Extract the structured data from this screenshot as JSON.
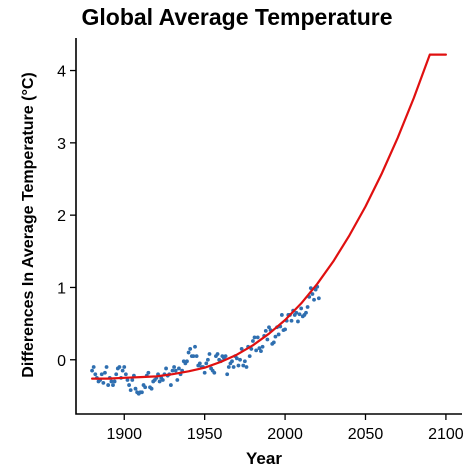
{
  "chart_data": {
    "type": "scatter",
    "title": "Global Average Temperature",
    "xlabel": "Year",
    "ylabel": "Differences In Average Temperature (°C)",
    "xlim": [
      1870,
      2110
    ],
    "ylim": [
      -0.75,
      4.45
    ],
    "xticks": [
      1900,
      1950,
      2000,
      2050,
      2100
    ],
    "yticks": [
      0,
      1,
      2,
      3,
      4
    ],
    "grid": false,
    "legend": "none",
    "colors": {
      "points": "#2f6fb0",
      "fit": "#e01010",
      "axis": "#000000"
    },
    "series": [
      {
        "type": "scatter",
        "x": [
          1880,
          1881,
          1882,
          1883,
          1884,
          1885,
          1886,
          1887,
          1888,
          1889,
          1890,
          1891,
          1892,
          1893,
          1894,
          1895,
          1896,
          1897,
          1898,
          1899,
          1900,
          1901,
          1902,
          1903,
          1904,
          1905,
          1906,
          1907,
          1908,
          1909,
          1910,
          1911,
          1912,
          1913,
          1914,
          1915,
          1916,
          1917,
          1918,
          1919,
          1920,
          1921,
          1922,
          1923,
          1924,
          1925,
          1926,
          1927,
          1928,
          1929,
          1930,
          1931,
          1932,
          1933,
          1934,
          1935,
          1936,
          1937,
          1938,
          1939,
          1940,
          1941,
          1942,
          1943,
          1944,
          1945,
          1946,
          1947,
          1948,
          1949,
          1950,
          1951,
          1952,
          1953,
          1954,
          1955,
          1956,
          1957,
          1958,
          1959,
          1960,
          1961,
          1962,
          1963,
          1964,
          1965,
          1966,
          1967,
          1968,
          1969,
          1970,
          1971,
          1972,
          1973,
          1974,
          1975,
          1976,
          1977,
          1978,
          1979,
          1980,
          1981,
          1982,
          1983,
          1984,
          1985,
          1986,
          1987,
          1988,
          1989,
          1990,
          1991,
          1992,
          1993,
          1994,
          1995,
          1996,
          1997,
          1998,
          1999,
          2000,
          2001,
          2002,
          2003,
          2004,
          2005,
          2006,
          2007,
          2008,
          2009,
          2010,
          2011,
          2012,
          2013,
          2014,
          2015,
          2016,
          2017,
          2018,
          2019,
          2020,
          2021
        ],
        "y": [
          -0.15,
          -0.1,
          -0.2,
          -0.25,
          -0.3,
          -0.28,
          -0.2,
          -0.32,
          -0.18,
          -0.1,
          -0.35,
          -0.25,
          -0.3,
          -0.35,
          -0.3,
          -0.2,
          -0.12,
          -0.1,
          -0.25,
          -0.15,
          -0.1,
          -0.2,
          -0.28,
          -0.35,
          -0.42,
          -0.28,
          -0.22,
          -0.4,
          -0.45,
          -0.47,
          -0.45,
          -0.45,
          -0.35,
          -0.38,
          -0.22,
          -0.18,
          -0.38,
          -0.4,
          -0.3,
          -0.28,
          -0.25,
          -0.2,
          -0.3,
          -0.25,
          -0.28,
          -0.2,
          -0.12,
          -0.22,
          -0.2,
          -0.35,
          -0.15,
          -0.1,
          -0.15,
          -0.28,
          -0.12,
          -0.2,
          -0.15,
          -0.02,
          -0.05,
          -0.02,
          0.1,
          0.15,
          0.05,
          0.05,
          0.18,
          0.05,
          -0.08,
          -0.05,
          -0.1,
          -0.1,
          -0.18,
          -0.05,
          0.0,
          0.08,
          -0.12,
          -0.15,
          -0.18,
          0.05,
          0.08,
          0.0,
          -0.02,
          0.05,
          0.02,
          0.05,
          -0.2,
          -0.1,
          -0.05,
          -0.02,
          -0.1,
          0.05,
          0.02,
          -0.08,
          0.0,
          0.15,
          -0.08,
          -0.02,
          -0.1,
          0.18,
          0.05,
          0.15,
          0.26,
          0.31,
          0.13,
          0.31,
          0.16,
          0.12,
          0.18,
          0.33,
          0.4,
          0.28,
          0.45,
          0.41,
          0.22,
          0.24,
          0.32,
          0.45,
          0.35,
          0.46,
          0.62,
          0.41,
          0.42,
          0.54,
          0.62,
          0.62,
          0.54,
          0.68,
          0.62,
          0.65,
          0.53,
          0.63,
          0.71,
          0.6,
          0.62,
          0.65,
          0.73,
          0.87,
          0.99,
          0.91,
          0.83,
          0.97,
          1.01,
          0.85
        ]
      },
      {
        "type": "line",
        "name": "fit",
        "x": [
          1880,
          1890,
          1900,
          1910,
          1920,
          1930,
          1940,
          1950,
          1960,
          1970,
          1980,
          1990,
          2000,
          2010,
          2020,
          2030,
          2040,
          2050,
          2060,
          2070,
          2080,
          2090,
          2100
        ],
        "y": [
          -0.26,
          -0.26,
          -0.25,
          -0.24,
          -0.23,
          -0.2,
          -0.16,
          -0.11,
          -0.03,
          0.07,
          0.2,
          0.36,
          0.55,
          0.78,
          1.05,
          1.36,
          1.72,
          2.12,
          2.57,
          3.07,
          3.62,
          4.22,
          4.22
        ]
      }
    ]
  }
}
